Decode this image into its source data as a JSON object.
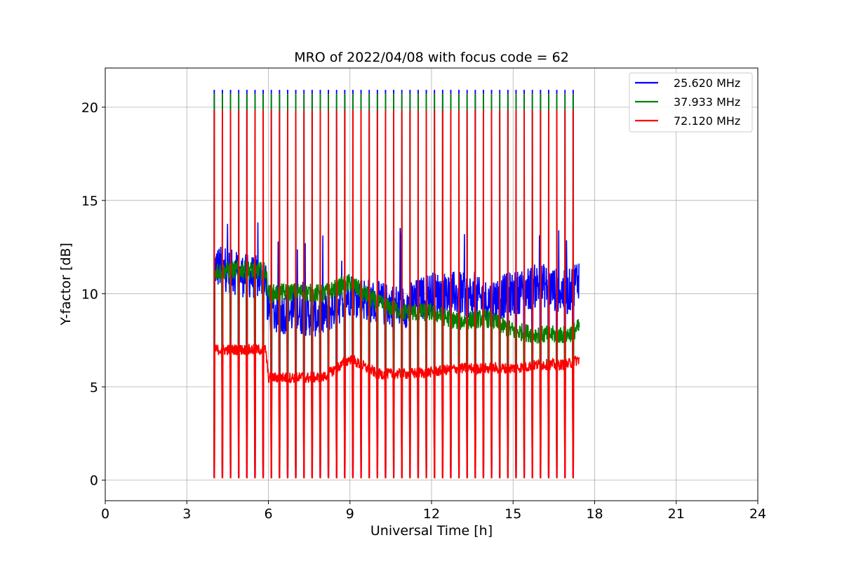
{
  "chart_data": {
    "type": "line",
    "title": "MRO of 2022/04/08 with focus code = 62",
    "xlabel": "Universal Time [h]",
    "ylabel": "Y-factor [dB]",
    "xlim": [
      0,
      24
    ],
    "ylim": [
      -1.1,
      22.1
    ],
    "xticks": [
      0,
      3,
      6,
      9,
      12,
      15,
      18,
      21,
      24
    ],
    "yticks": [
      0,
      5,
      10,
      15,
      20
    ],
    "grid": true,
    "legend_position": "top-right",
    "cycle": {
      "start_h": 4.0,
      "end_h": 17.45,
      "period_h": 0.3,
      "note_pattern": "periodic calibration spikes: each series rises to a high level then drops to near 0 dB once per cycle"
    },
    "series": [
      {
        "name": "25.620 MHz",
        "color": "#0000ff",
        "spike_high": 20.9,
        "spike_low": 0.2,
        "baseline": [
          [
            4.0,
            11.5
          ],
          [
            5.0,
            11.0
          ],
          [
            5.9,
            10.8
          ],
          [
            6.0,
            9.0
          ],
          [
            7.0,
            9.0
          ],
          [
            8.0,
            8.8
          ],
          [
            9.0,
            10.0
          ],
          [
            10.0,
            9.5
          ],
          [
            11.0,
            9.3
          ],
          [
            12.0,
            10.0
          ],
          [
            13.0,
            10.0
          ],
          [
            14.0,
            9.6
          ],
          [
            15.0,
            10.0
          ],
          [
            16.0,
            10.5
          ],
          [
            17.0,
            10.0
          ],
          [
            17.45,
            11.0
          ]
        ],
        "noise": 1.2
      },
      {
        "name": "37.933 MHz",
        "color": "#008000",
        "spike_high": 20.7,
        "spike_low": 0.6,
        "baseline": [
          [
            4.0,
            11.2
          ],
          [
            5.0,
            11.3
          ],
          [
            5.9,
            11.2
          ],
          [
            6.0,
            10.0
          ],
          [
            7.0,
            10.1
          ],
          [
            8.0,
            10.0
          ],
          [
            9.0,
            10.6
          ],
          [
            10.0,
            9.5
          ],
          [
            11.0,
            9.0
          ],
          [
            12.0,
            9.0
          ],
          [
            13.0,
            8.5
          ],
          [
            14.0,
            8.7
          ],
          [
            15.0,
            8.0
          ],
          [
            16.0,
            7.8
          ],
          [
            17.0,
            7.8
          ],
          [
            17.45,
            8.2
          ]
        ],
        "noise": 0.5
      },
      {
        "name": "72.120 MHz",
        "color": "#ff0000",
        "spike_high": 19.8,
        "spike_low": 0.1,
        "baseline": [
          [
            4.0,
            7.0
          ],
          [
            5.0,
            7.0
          ],
          [
            5.9,
            7.0
          ],
          [
            6.0,
            5.5
          ],
          [
            7.0,
            5.5
          ],
          [
            8.0,
            5.5
          ],
          [
            9.0,
            6.5
          ],
          [
            10.0,
            5.7
          ],
          [
            11.0,
            5.7
          ],
          [
            12.0,
            5.8
          ],
          [
            13.0,
            6.0
          ],
          [
            14.0,
            6.0
          ],
          [
            15.0,
            6.0
          ],
          [
            16.0,
            6.2
          ],
          [
            17.0,
            6.2
          ],
          [
            17.45,
            6.5
          ]
        ],
        "noise": 0.3
      }
    ]
  }
}
